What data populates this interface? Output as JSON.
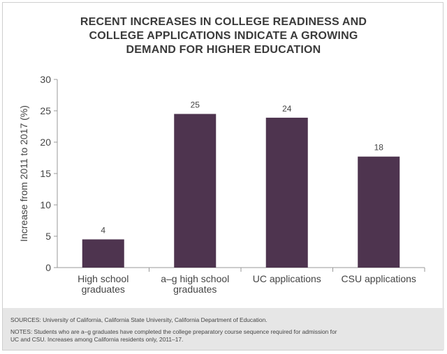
{
  "title_lines": [
    "RECENT INCREASES IN COLLEGE READINESS AND",
    "COLLEGE APPLICATIONS INDICATE A GROWING",
    "DEMAND FOR HIGHER EDUCATION"
  ],
  "chart_data": {
    "type": "bar",
    "title": "RECENT INCREASES IN COLLEGE READINESS AND COLLEGE APPLICATIONS INDICATE A GROWING DEMAND FOR HIGHER EDUCATION",
    "categories": [
      [
        "High school",
        "graduates"
      ],
      [
        "a–g high school",
        "graduates"
      ],
      [
        "UC applications"
      ],
      [
        "CSU applications"
      ]
    ],
    "values": [
      4.5,
      24.5,
      23.9,
      17.7
    ],
    "data_labels": [
      "4",
      "25",
      "24",
      "18"
    ],
    "ylabel": "Increase from 2011 to 2017 (%)",
    "xlabel": "",
    "ylim": [
      0,
      30
    ],
    "yticks": [
      0,
      5,
      10,
      15,
      20,
      25,
      30
    ],
    "grid": false,
    "bar_color": "#4e344f"
  },
  "footer": {
    "sources": "SOURCES: University of California, California State University, California Department of Education.",
    "notes_line1": "NOTES: Students who are a–g graduates have completed the college preparatory course sequence required for admission for",
    "notes_line2": "UC and CSU. Increases among California residents only, 2011–17."
  }
}
